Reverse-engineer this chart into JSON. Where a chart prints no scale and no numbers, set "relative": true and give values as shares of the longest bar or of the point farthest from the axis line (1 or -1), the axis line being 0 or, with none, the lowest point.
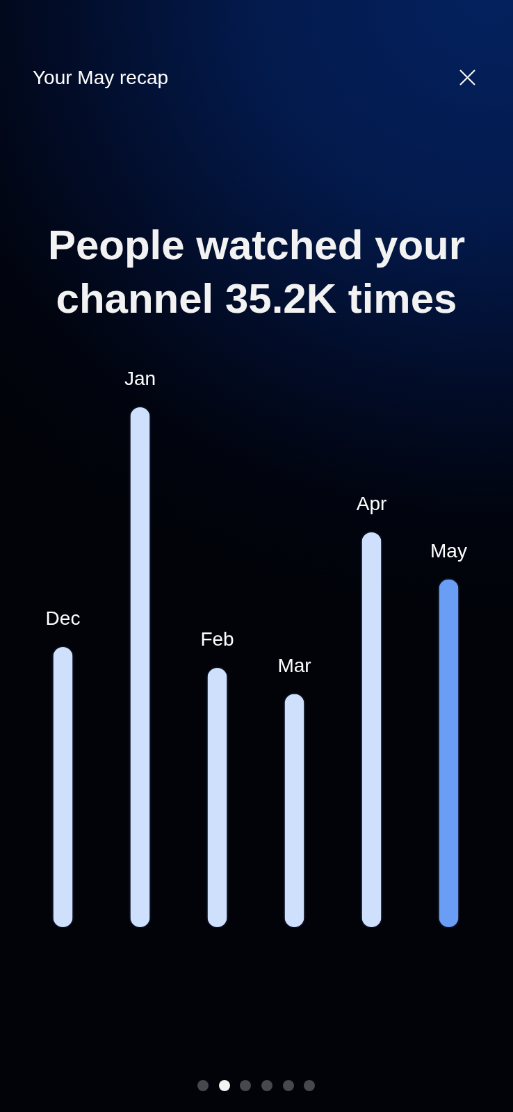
{
  "chart_data": {
    "type": "bar",
    "title": "People watched your channel 35.2K times",
    "subtitle": "Your May recap",
    "categories": [
      "Dec",
      "Jan",
      "Feb",
      "Mar",
      "Apr",
      "May"
    ],
    "values": [
      0.54,
      1,
      0.5,
      0.45,
      0.76,
      0.67
    ],
    "colors": [
      "#cfe0fc",
      "#cfe0fc",
      "#cfe0fc",
      "#cfe0fc",
      "#cfe0fc",
      "#6a9ef5"
    ],
    "relative": true
  }
}
